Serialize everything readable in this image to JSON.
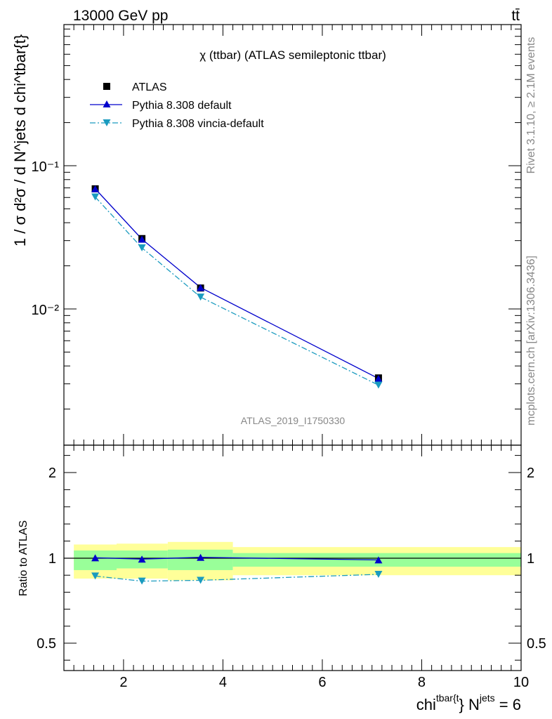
{
  "header": {
    "energy_label": "13000 GeV pp",
    "process_label": "tt̄"
  },
  "side_labels": {
    "rivet": "Rivet 3.1.10, ≥ 2.1M events",
    "mcplots": "mcplots.cern.ch [arXiv:1306.3436]"
  },
  "chart_data": [
    {
      "type": "scatter",
      "title": "χ (ttbar) (ATLAS semileptonic ttbar)",
      "watermark": "ATLAS_2019_I1750330",
      "ylabel": "1 / σ d²σ / d N^jets d chi^tbar{t}",
      "yscale": "log",
      "ylim": [
        0.0009,
        0.9
      ],
      "xlim": [
        0.8,
        10.0
      ],
      "y_tick_labels": [
        "10⁻¹",
        "10⁻²"
      ],
      "legend_position": "top-left",
      "x": [
        1.43,
        2.37,
        3.55,
        7.13
      ],
      "x_bins": [
        [
          1.0,
          1.86
        ],
        [
          1.86,
          2.89
        ],
        [
          2.89,
          4.2
        ],
        [
          4.2,
          10.0
        ]
      ],
      "series": [
        {
          "name": "ATLAS",
          "marker": "square",
          "color": "#000000",
          "values": [
            0.069,
            0.031,
            0.014,
            0.0033
          ]
        },
        {
          "name": "Pythia 8.308 default",
          "marker": "triangle-up",
          "color": "#0000cc",
          "line": "solid",
          "values": [
            0.069,
            0.0307,
            0.0141,
            0.00327
          ]
        },
        {
          "name": "Pythia 8.308 vincia-default",
          "marker": "triangle-down",
          "color": "#1a9bbf",
          "line": "dash-dot",
          "values": [
            0.0605,
            0.0267,
            0.0121,
            0.00294
          ]
        }
      ]
    },
    {
      "type": "scatter",
      "ylabel": "Ratio to ATLAS",
      "xlabel": "chi^tbar{t} N^jets = 6",
      "ylim": [
        0.35,
        2.45
      ],
      "xlim": [
        0.8,
        10.0
      ],
      "y_ticks": [
        0.5,
        1,
        2
      ],
      "y_tick_labels": [
        "0.5",
        "1",
        "2"
      ],
      "x_ticks": [
        2,
        4,
        6,
        8,
        10
      ],
      "x_tick_labels": [
        "2",
        "4",
        "6",
        "8",
        "10"
      ],
      "x": [
        1.43,
        2.37,
        3.55,
        7.13
      ],
      "x_bins": [
        [
          1.0,
          1.86
        ],
        [
          1.86,
          2.89
        ],
        [
          2.89,
          4.2
        ],
        [
          4.2,
          10.0
        ]
      ],
      "uncertainty_bands": {
        "stat_color": "#99ff99",
        "total_color": "#ffff99",
        "stat": [
          [
            0.93,
            1.09
          ],
          [
            0.94,
            1.09
          ],
          [
            0.93,
            1.1
          ],
          [
            0.95,
            1.06
          ]
        ],
        "total": [
          [
            0.88,
            1.16
          ],
          [
            0.88,
            1.17
          ],
          [
            0.87,
            1.19
          ],
          [
            0.9,
            1.13
          ]
        ]
      },
      "series": [
        {
          "name": "Pythia 8.308 default",
          "color": "#0000cc",
          "values": [
            1.005,
            0.995,
            1.01,
            0.99
          ]
        },
        {
          "name": "Pythia 8.308 vincia-default",
          "color": "#1a9bbf",
          "values": [
            0.895,
            0.865,
            0.87,
            0.905
          ]
        }
      ]
    }
  ]
}
